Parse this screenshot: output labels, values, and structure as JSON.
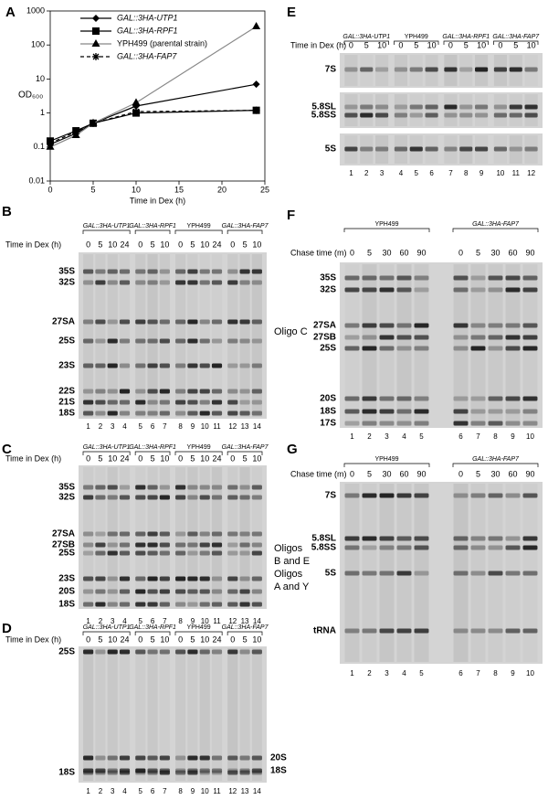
{
  "chart_data": {
    "type": "line",
    "letter": "A",
    "xlabel": "Time in Dex (h)",
    "ylabel": "OD₆₀₀",
    "x": [
      0,
      3,
      5,
      10,
      24
    ],
    "xlim": [
      0,
      25
    ],
    "xticks": [
      0,
      5,
      10,
      15,
      20,
      25
    ],
    "ylim": [
      0.01,
      1000
    ],
    "yticks": [
      0.01,
      0.1,
      1,
      10,
      100,
      1000
    ],
    "log_y": true,
    "legend": "upper-left",
    "series": [
      {
        "name": "GAL::3HA-UTP1",
        "italic": true,
        "marker": "diamond",
        "color": "#000000",
        "line_color": "#000000",
        "dash": false,
        "values": [
          0.12,
          0.25,
          0.5,
          1.6,
          7
        ]
      },
      {
        "name": "GAL::3HA-RPF1",
        "italic": true,
        "marker": "square",
        "color": "#000000",
        "line_color": "#000000",
        "dash": false,
        "values": [
          0.15,
          0.3,
          0.5,
          1.0,
          1.2
        ]
      },
      {
        "name": "YPH499 (parental strain)",
        "italic": false,
        "marker": "triangle",
        "color": "#000000",
        "line_color": "#888888",
        "dash": false,
        "values": [
          0.1,
          0.22,
          0.5,
          2,
          350
        ]
      },
      {
        "name": "GAL::3HA-FAP7",
        "italic": true,
        "marker": "star",
        "color": "#000000",
        "line_color": "#000000",
        "dash": true,
        "values": [
          0.13,
          0.28,
          0.5,
          1.1,
          1.2
        ]
      }
    ]
  },
  "gels": [
    {
      "letter": "B",
      "time_label": "Time in Dex (h)",
      "groups": [
        {
          "label": "GAL::3HA-UTP1",
          "italic": true,
          "times": [
            0,
            5,
            10,
            24
          ]
        },
        {
          "label": "GAL::3HA-RPF1",
          "italic": true,
          "times": [
            0,
            5,
            10
          ]
        },
        {
          "label": "YPH499",
          "italic": false,
          "times": [
            0,
            5,
            10,
            24
          ]
        },
        {
          "label": "GAL::3HA-FAP7",
          "italic": true,
          "times": [
            0,
            5,
            10
          ]
        }
      ],
      "lanes": [
        1,
        2,
        3,
        4,
        5,
        6,
        7,
        8,
        9,
        10,
        11,
        12,
        13,
        14
      ],
      "bands_left": [
        "35S",
        "32S",
        "27SA",
        "25S",
        "23S",
        "22S",
        "21S",
        "18S"
      ],
      "side_label": [
        "Oligo C"
      ]
    },
    {
      "letter": "C",
      "time_label": "Time in Dex (h)",
      "groups": [
        {
          "label": "GAL::3HA-UTP1",
          "italic": true,
          "times": [
            0,
            5,
            10,
            24
          ]
        },
        {
          "label": "GAL::3HA-RPF1",
          "italic": true,
          "times": [
            0,
            5,
            10
          ]
        },
        {
          "label": "YPH499",
          "italic": false,
          "times": [
            0,
            5,
            10,
            24
          ]
        },
        {
          "label": "GAL::3HA-FAP7",
          "italic": true,
          "times": [
            0,
            5,
            10
          ]
        }
      ],
      "lanes": [
        1,
        2,
        3,
        4,
        5,
        6,
        7,
        8,
        9,
        10,
        11,
        12,
        13,
        14
      ],
      "bands_left": [
        "35S",
        "32S",
        "27SA",
        "27SB",
        "25S",
        "23S",
        "20S",
        "18S"
      ],
      "side_label": [
        "Oligos",
        "B and E"
      ]
    },
    {
      "letter": "D",
      "time_label": "Time in Dex (h)",
      "groups": [
        {
          "label": "GAL::3HA-UTP1",
          "italic": true,
          "times": [
            0,
            5,
            10,
            24
          ]
        },
        {
          "label": "GAL::3HA-RPF1",
          "italic": true,
          "times": [
            0,
            5,
            10
          ]
        },
        {
          "label": "YPH499",
          "italic": false,
          "times": [
            0,
            5,
            10,
            24
          ]
        },
        {
          "label": "GAL::3HA-FAP7",
          "italic": true,
          "times": [
            0,
            5,
            10
          ]
        }
      ],
      "lanes": [
        1,
        2,
        3,
        4,
        5,
        6,
        7,
        8,
        9,
        10,
        11,
        12,
        13,
        14
      ],
      "bands_left": [
        "25S",
        "18S"
      ],
      "bands_right": [
        "20S",
        "18S"
      ],
      "side_label": [
        "Oligos",
        "A and Y"
      ]
    },
    {
      "letter": "E",
      "time_label": "Time in Dex (h)",
      "groups": [
        {
          "label": "GAL::3HA-UTP1",
          "italic": true,
          "times": [
            0,
            5,
            10
          ]
        },
        {
          "label": "YPH499",
          "italic": false,
          "times": [
            0,
            5,
            10
          ]
        },
        {
          "label": "GAL::3HA-RPF1",
          "italic": true,
          "times": [
            0,
            5,
            10
          ]
        },
        {
          "label": "GAL::3HA-FAP7",
          "italic": true,
          "times": [
            0,
            5,
            10
          ]
        }
      ],
      "lanes": [
        1,
        2,
        3,
        4,
        5,
        6,
        7,
        8,
        9,
        10,
        11,
        12
      ],
      "bands_left": [
        "7S",
        "5.8SL",
        "5.8SS",
        "5S"
      ]
    },
    {
      "letter": "F",
      "time_label": "Chase time (m)",
      "groups": [
        {
          "label": "YPH499",
          "italic": false,
          "times": [
            0,
            5,
            30,
            60,
            90
          ]
        },
        {
          "label": "GAL::3HA-FAP7",
          "italic": true,
          "times": [
            0,
            5,
            30,
            60,
            90
          ]
        }
      ],
      "lanes": [
        1,
        2,
        3,
        4,
        5,
        6,
        7,
        8,
        9,
        10
      ],
      "bands_left": [
        "35S",
        "32S",
        "27SA",
        "27SB",
        "25S",
        "20S",
        "18S",
        "17S"
      ]
    },
    {
      "letter": "G",
      "time_label": "Chase time (m)",
      "groups": [
        {
          "label": "YPH499",
          "italic": false,
          "times": [
            0,
            5,
            30,
            60,
            90
          ]
        },
        {
          "label": "GAL::3HA-FAP7",
          "italic": true,
          "times": [
            0,
            5,
            30,
            60,
            90
          ]
        }
      ],
      "lanes": [
        1,
        2,
        3,
        4,
        5,
        6,
        7,
        8,
        9,
        10
      ],
      "bands_left": [
        "7S",
        "5.8SL",
        "5.8SS",
        "5S",
        "tRNA"
      ]
    }
  ]
}
